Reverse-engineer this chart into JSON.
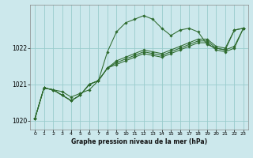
{
  "title": "Graphe pression niveau de la mer (hPa)",
  "background_color": "#cce8ec",
  "grid_color": "#99cccc",
  "line_color": "#2d6a2d",
  "xlim": [
    -0.5,
    23.5
  ],
  "ylim": [
    1019.75,
    1023.2
  ],
  "yticks": [
    1020,
    1021,
    1022
  ],
  "xticks": [
    0,
    1,
    2,
    3,
    4,
    5,
    6,
    7,
    8,
    9,
    10,
    11,
    12,
    13,
    14,
    15,
    16,
    17,
    18,
    19,
    20,
    21,
    22,
    23
  ],
  "series1": {
    "x": [
      0,
      1,
      2,
      3,
      4,
      5,
      6,
      7,
      8,
      9,
      10,
      11,
      12,
      13,
      14,
      15,
      16,
      17,
      18,
      19,
      20,
      21,
      22,
      23
    ],
    "y": [
      1020.05,
      1020.9,
      1020.85,
      1020.8,
      1020.65,
      1020.75,
      1020.85,
      1021.1,
      1021.9,
      1022.45,
      1022.7,
      1022.8,
      1022.9,
      1022.8,
      1022.55,
      1022.35,
      1022.5,
      1022.55,
      1022.45,
      1022.1,
      1022.0,
      1021.95,
      1022.5,
      1022.55
    ]
  },
  "series2": {
    "x": [
      0,
      1,
      2,
      3,
      4,
      5,
      6,
      7,
      8,
      9,
      10,
      11,
      12,
      13,
      14,
      15,
      16,
      17,
      18,
      19,
      20,
      21,
      22,
      23
    ],
    "y": [
      1020.05,
      1020.9,
      1020.85,
      1020.7,
      1020.55,
      1020.7,
      1021.0,
      1021.1,
      1021.45,
      1021.65,
      1021.75,
      1021.85,
      1021.95,
      1021.9,
      1021.85,
      1021.95,
      1022.05,
      1022.15,
      1022.25,
      1022.25,
      1022.05,
      1022.0,
      1022.5,
      1022.55
    ]
  },
  "series3": {
    "x": [
      0,
      1,
      2,
      3,
      4,
      5,
      6,
      7,
      8,
      9,
      10,
      11,
      12,
      13,
      14,
      15,
      16,
      17,
      18,
      19,
      20,
      21,
      22,
      23
    ],
    "y": [
      1020.05,
      1020.9,
      1020.85,
      1020.7,
      1020.55,
      1020.7,
      1021.0,
      1021.1,
      1021.45,
      1021.6,
      1021.7,
      1021.8,
      1021.9,
      1021.85,
      1021.8,
      1021.9,
      1022.0,
      1022.1,
      1022.2,
      1022.2,
      1022.0,
      1021.95,
      1022.05,
      1022.55
    ]
  },
  "series4": {
    "x": [
      0,
      1,
      2,
      3,
      4,
      5,
      6,
      7,
      8,
      9,
      10,
      11,
      12,
      13,
      14,
      15,
      16,
      17,
      18,
      19,
      20,
      21,
      22,
      23
    ],
    "y": [
      1020.05,
      1020.9,
      1020.85,
      1020.7,
      1020.55,
      1020.7,
      1021.0,
      1021.1,
      1021.45,
      1021.55,
      1021.65,
      1021.75,
      1021.85,
      1021.8,
      1021.75,
      1021.85,
      1021.95,
      1022.05,
      1022.15,
      1022.15,
      1021.95,
      1021.9,
      1022.0,
      1022.55
    ]
  }
}
